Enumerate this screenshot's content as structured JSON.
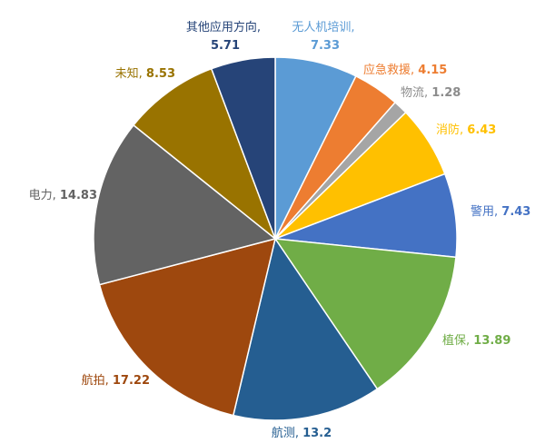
{
  "chart_data": {
    "type": "pie",
    "categories": [
      "无人机培训",
      "应急救援",
      "物流",
      "消防",
      "警用",
      "植保",
      "航测",
      "航拍",
      "电力",
      "未知",
      "其他应用方向"
    ],
    "values": [
      7.33,
      4.15,
      1.28,
      6.43,
      7.43,
      13.89,
      13.2,
      17.22,
      14.83,
      8.53,
      5.71
    ],
    "colors": [
      "#5b9bd5",
      "#ed7d31",
      "#a5a5a5",
      "#ffc000",
      "#4472c4",
      "#70ad47",
      "#255e91",
      "#9e480e",
      "#636363",
      "#997300",
      "#264478"
    ],
    "label_separator": ", "
  }
}
